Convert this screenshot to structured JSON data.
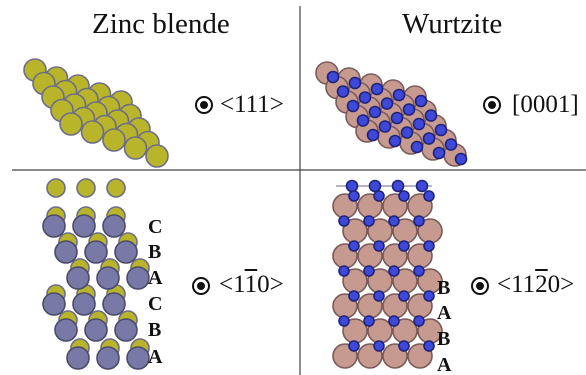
{
  "columns": {
    "left_title": "Zinc blende",
    "right_title": "Wurtzite"
  },
  "directions": {
    "zb_top": {
      "pre": "<1",
      "bar": "",
      "post": "11>"
    },
    "wz_top": {
      "pre": "[0001]",
      "bar": "",
      "post": ""
    },
    "zb_bottom": {
      "pre": "<1",
      "bar": "1",
      "post": "0>"
    },
    "wz_bottom": {
      "pre": "<11",
      "bar": "2",
      "post": "0>"
    }
  },
  "stacking": {
    "zb_letters": [
      "C",
      "B",
      "A",
      "C",
      "B",
      "A"
    ],
    "wz_letters": [
      "B",
      "A",
      "B",
      "A"
    ]
  },
  "colors": {
    "zb_cation": "#b8b52a",
    "zb_anion": "#7879a6",
    "wz_large": "#c79a90",
    "wz_small": "#3f49d9",
    "grid_line": "#444444"
  }
}
